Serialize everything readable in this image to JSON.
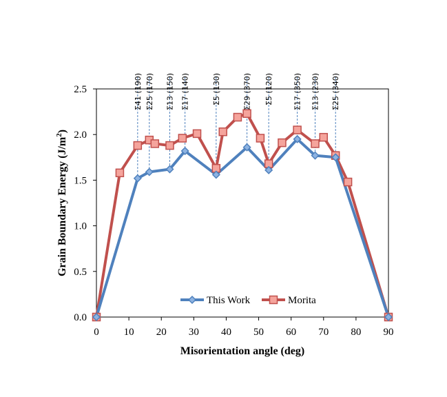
{
  "chart_data": {
    "type": "line",
    "title": "",
    "xlabel": "Misorientation angle (deg)",
    "ylabel_main": "Grain Boundary Energy (J/m",
    "ylabel_sup": "2",
    "ylabel_end": ")",
    "xlim": [
      0,
      90
    ],
    "ylim": [
      0,
      2.5
    ],
    "xticks": [
      0,
      10,
      20,
      30,
      40,
      50,
      60,
      70,
      80,
      90
    ],
    "xtick_labels": [
      "0",
      "10",
      "20",
      "30",
      "40",
      "50",
      "60",
      "70",
      "80",
      "90"
    ],
    "yticks": [
      0,
      0.5,
      1.0,
      1.5,
      2.0,
      2.5
    ],
    "ytick_labels": [
      "0.0",
      "0.5",
      "1.0",
      "1.5",
      "2.0",
      "2.5"
    ],
    "grid": false,
    "legend_position": "bottom-center",
    "series": [
      {
        "name": "This Work",
        "color": "#4F81BD",
        "marker": "diamond",
        "x": [
          0,
          12.7,
          16.3,
          22.6,
          27.3,
          36.9,
          46.4,
          53.1,
          61.9,
          67.4,
          73.7,
          90
        ],
        "y": [
          0,
          1.52,
          1.59,
          1.62,
          1.82,
          1.56,
          1.86,
          1.61,
          1.95,
          1.77,
          1.75,
          0
        ]
      },
      {
        "name": "Morita",
        "color": "#C0504D",
        "marker": "square",
        "x": [
          0,
          7.2,
          12.7,
          16.3,
          18.0,
          22.6,
          26.5,
          31.0,
          36.9,
          39.0,
          43.5,
          46.4,
          50.5,
          53.1,
          57.2,
          61.9,
          67.4,
          70.0,
          73.7,
          77.5,
          90
        ],
        "y": [
          0,
          1.58,
          1.88,
          1.94,
          1.9,
          1.88,
          1.96,
          2.01,
          1.63,
          2.03,
          2.19,
          2.23,
          1.96,
          1.68,
          1.91,
          2.05,
          1.9,
          1.97,
          1.77,
          1.48,
          0
        ]
      }
    ],
    "annotations": [
      {
        "x": 12.7,
        "label": "Σ41 (190)"
      },
      {
        "x": 16.3,
        "label": "Σ25 (170)"
      },
      {
        "x": 22.6,
        "label": "Σ13 (150)"
      },
      {
        "x": 27.3,
        "label": "Σ17 (140)"
      },
      {
        "x": 36.9,
        "label": "Σ5 (130)"
      },
      {
        "x": 46.4,
        "label": "Σ29 (370)"
      },
      {
        "x": 53.1,
        "label": "Σ5 (120)"
      },
      {
        "x": 61.9,
        "label": "Σ17 (350)"
      },
      {
        "x": 67.4,
        "label": "Σ13 (230)"
      },
      {
        "x": 73.7,
        "label": "Σ25 (340)"
      }
    ]
  }
}
